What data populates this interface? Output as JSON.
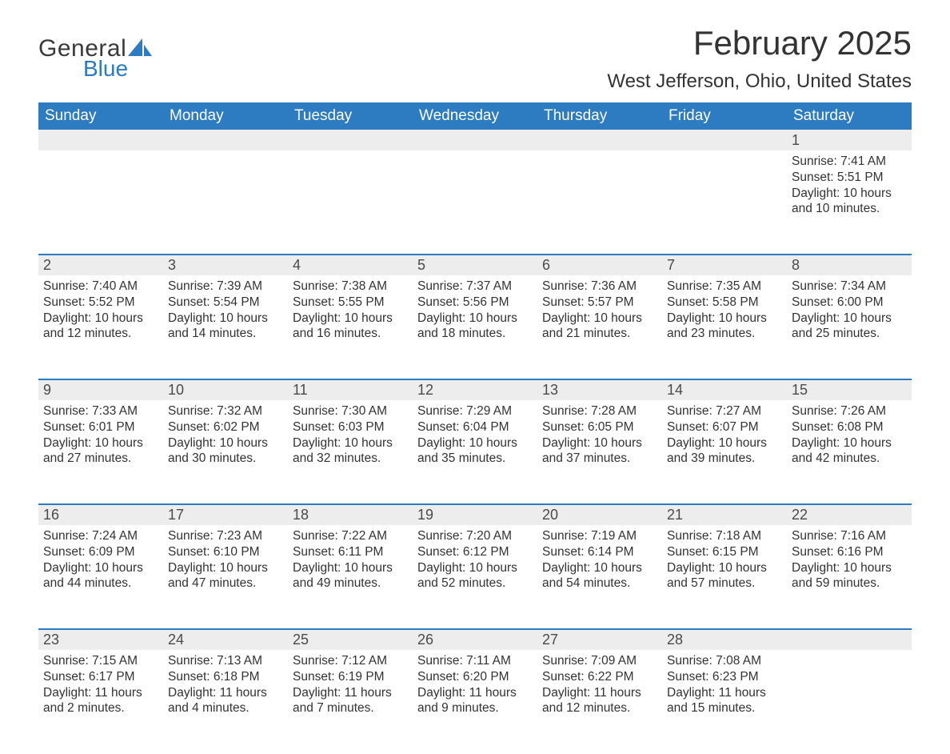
{
  "logo": {
    "text_general": "General",
    "text_blue": "Blue",
    "sail_color": "#2d7bc0"
  },
  "title": "February 2025",
  "location": "West Jefferson, Ohio, United States",
  "colors": {
    "header_bg": "#2d7bc0",
    "header_text": "#ffffff",
    "daynum_bg": "#ededed",
    "row_border": "#2d7bc0",
    "body_text": "#333333",
    "background": "#ffffff"
  },
  "typography": {
    "title_fontsize": 42,
    "location_fontsize": 24,
    "weekday_fontsize": 19,
    "daynum_fontsize": 18,
    "body_fontsize": 15.5
  },
  "weekdays": [
    "Sunday",
    "Monday",
    "Tuesday",
    "Wednesday",
    "Thursday",
    "Friday",
    "Saturday"
  ],
  "weeks": [
    [
      null,
      null,
      null,
      null,
      null,
      null,
      {
        "n": "1",
        "sunrise": "Sunrise: 7:41 AM",
        "sunset": "Sunset: 5:51 PM",
        "daylight": "Daylight: 10 hours and 10 minutes."
      }
    ],
    [
      {
        "n": "2",
        "sunrise": "Sunrise: 7:40 AM",
        "sunset": "Sunset: 5:52 PM",
        "daylight": "Daylight: 10 hours and 12 minutes."
      },
      {
        "n": "3",
        "sunrise": "Sunrise: 7:39 AM",
        "sunset": "Sunset: 5:54 PM",
        "daylight": "Daylight: 10 hours and 14 minutes."
      },
      {
        "n": "4",
        "sunrise": "Sunrise: 7:38 AM",
        "sunset": "Sunset: 5:55 PM",
        "daylight": "Daylight: 10 hours and 16 minutes."
      },
      {
        "n": "5",
        "sunrise": "Sunrise: 7:37 AM",
        "sunset": "Sunset: 5:56 PM",
        "daylight": "Daylight: 10 hours and 18 minutes."
      },
      {
        "n": "6",
        "sunrise": "Sunrise: 7:36 AM",
        "sunset": "Sunset: 5:57 PM",
        "daylight": "Daylight: 10 hours and 21 minutes."
      },
      {
        "n": "7",
        "sunrise": "Sunrise: 7:35 AM",
        "sunset": "Sunset: 5:58 PM",
        "daylight": "Daylight: 10 hours and 23 minutes."
      },
      {
        "n": "8",
        "sunrise": "Sunrise: 7:34 AM",
        "sunset": "Sunset: 6:00 PM",
        "daylight": "Daylight: 10 hours and 25 minutes."
      }
    ],
    [
      {
        "n": "9",
        "sunrise": "Sunrise: 7:33 AM",
        "sunset": "Sunset: 6:01 PM",
        "daylight": "Daylight: 10 hours and 27 minutes."
      },
      {
        "n": "10",
        "sunrise": "Sunrise: 7:32 AM",
        "sunset": "Sunset: 6:02 PM",
        "daylight": "Daylight: 10 hours and 30 minutes."
      },
      {
        "n": "11",
        "sunrise": "Sunrise: 7:30 AM",
        "sunset": "Sunset: 6:03 PM",
        "daylight": "Daylight: 10 hours and 32 minutes."
      },
      {
        "n": "12",
        "sunrise": "Sunrise: 7:29 AM",
        "sunset": "Sunset: 6:04 PM",
        "daylight": "Daylight: 10 hours and 35 minutes."
      },
      {
        "n": "13",
        "sunrise": "Sunrise: 7:28 AM",
        "sunset": "Sunset: 6:05 PM",
        "daylight": "Daylight: 10 hours and 37 minutes."
      },
      {
        "n": "14",
        "sunrise": "Sunrise: 7:27 AM",
        "sunset": "Sunset: 6:07 PM",
        "daylight": "Daylight: 10 hours and 39 minutes."
      },
      {
        "n": "15",
        "sunrise": "Sunrise: 7:26 AM",
        "sunset": "Sunset: 6:08 PM",
        "daylight": "Daylight: 10 hours and 42 minutes."
      }
    ],
    [
      {
        "n": "16",
        "sunrise": "Sunrise: 7:24 AM",
        "sunset": "Sunset: 6:09 PM",
        "daylight": "Daylight: 10 hours and 44 minutes."
      },
      {
        "n": "17",
        "sunrise": "Sunrise: 7:23 AM",
        "sunset": "Sunset: 6:10 PM",
        "daylight": "Daylight: 10 hours and 47 minutes."
      },
      {
        "n": "18",
        "sunrise": "Sunrise: 7:22 AM",
        "sunset": "Sunset: 6:11 PM",
        "daylight": "Daylight: 10 hours and 49 minutes."
      },
      {
        "n": "19",
        "sunrise": "Sunrise: 7:20 AM",
        "sunset": "Sunset: 6:12 PM",
        "daylight": "Daylight: 10 hours and 52 minutes."
      },
      {
        "n": "20",
        "sunrise": "Sunrise: 7:19 AM",
        "sunset": "Sunset: 6:14 PM",
        "daylight": "Daylight: 10 hours and 54 minutes."
      },
      {
        "n": "21",
        "sunrise": "Sunrise: 7:18 AM",
        "sunset": "Sunset: 6:15 PM",
        "daylight": "Daylight: 10 hours and 57 minutes."
      },
      {
        "n": "22",
        "sunrise": "Sunrise: 7:16 AM",
        "sunset": "Sunset: 6:16 PM",
        "daylight": "Daylight: 10 hours and 59 minutes."
      }
    ],
    [
      {
        "n": "23",
        "sunrise": "Sunrise: 7:15 AM",
        "sunset": "Sunset: 6:17 PM",
        "daylight": "Daylight: 11 hours and 2 minutes."
      },
      {
        "n": "24",
        "sunrise": "Sunrise: 7:13 AM",
        "sunset": "Sunset: 6:18 PM",
        "daylight": "Daylight: 11 hours and 4 minutes."
      },
      {
        "n": "25",
        "sunrise": "Sunrise: 7:12 AM",
        "sunset": "Sunset: 6:19 PM",
        "daylight": "Daylight: 11 hours and 7 minutes."
      },
      {
        "n": "26",
        "sunrise": "Sunrise: 7:11 AM",
        "sunset": "Sunset: 6:20 PM",
        "daylight": "Daylight: 11 hours and 9 minutes."
      },
      {
        "n": "27",
        "sunrise": "Sunrise: 7:09 AM",
        "sunset": "Sunset: 6:22 PM",
        "daylight": "Daylight: 11 hours and 12 minutes."
      },
      {
        "n": "28",
        "sunrise": "Sunrise: 7:08 AM",
        "sunset": "Sunset: 6:23 PM",
        "daylight": "Daylight: 11 hours and 15 minutes."
      },
      null
    ]
  ]
}
